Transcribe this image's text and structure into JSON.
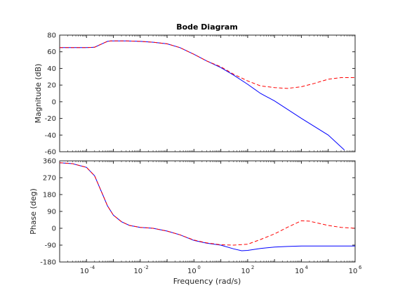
{
  "chart_data": {
    "type": "line",
    "title": "Bode Diagram",
    "xlabel": "Frequency  (rad/s)",
    "x_scale": "log",
    "xlim": [
      1e-05,
      1000000.0
    ],
    "x_ticks": [
      0.0001,
      0.01,
      1,
      100.0,
      10000.0,
      1000000.0
    ],
    "x_tick_labels": [
      [
        "10",
        "-4"
      ],
      [
        "10",
        "-2"
      ],
      [
        "10",
        "0"
      ],
      [
        "10",
        "2"
      ],
      [
        "10",
        "4"
      ],
      [
        "10",
        "6"
      ]
    ],
    "grid": false,
    "legend": "none",
    "colors": {
      "series_a": "#0000ff",
      "series_b": "#ff0000",
      "axes": "#262626"
    },
    "panels": [
      {
        "id": "magnitude",
        "ylabel": "Magnitude (dB)",
        "ylim": [
          -60,
          80
        ],
        "y_ticks": [
          -60,
          -40,
          -20,
          0,
          20,
          40,
          60,
          80
        ],
        "series": [
          {
            "style": "solid",
            "x": [
              1e-05,
              0.0001,
              0.0002,
              0.0004,
              0.0006,
              0.0008,
              0.001,
              0.003,
              0.01,
              0.03,
              0.1,
              0.3,
              1,
              3,
              10,
              30,
              100,
              300,
              1000,
              10000.0,
              100000.0,
              400000.0
            ],
            "y": [
              65,
              65,
              65.5,
              70,
              72.5,
              73,
              73,
              73,
              72.5,
              71.5,
              69.5,
              65,
              57,
              49,
              41,
              32,
              21,
              10,
              1,
              -20,
              -40,
              -58
            ]
          },
          {
            "style": "dashed",
            "x": [
              1e-05,
              0.0001,
              0.0002,
              0.0004,
              0.0006,
              0.0008,
              0.001,
              0.003,
              0.01,
              0.03,
              0.1,
              0.3,
              1,
              3,
              10,
              30,
              100,
              300,
              1000,
              3000,
              10000.0,
              30000.0,
              100000.0,
              300000.0,
              1000000.0
            ],
            "y": [
              65,
              65,
              65.5,
              70,
              72.5,
              73,
              73,
              73,
              72.5,
              71.5,
              69.5,
              65,
              57,
              49,
              42,
              33,
              25,
              19,
              17,
              16,
              18,
              22,
              27,
              29,
              29
            ]
          }
        ]
      },
      {
        "id": "phase",
        "ylabel": "Phase (deg)",
        "ylim": [
          -180,
          360
        ],
        "y_ticks": [
          -180,
          -90,
          0,
          90,
          180,
          270,
          360
        ],
        "series": [
          {
            "style": "solid",
            "x": [
              1e-05,
              3e-05,
              0.0001,
              0.0002,
              0.0004,
              0.0006,
              0.001,
              0.002,
              0.004,
              0.01,
              0.03,
              0.1,
              0.3,
              1,
              3,
              10,
              30,
              60,
              100,
              300,
              1000,
              3000,
              10000.0,
              100000.0,
              1000000.0
            ],
            "y": [
              350,
              345,
              325,
              280,
              180,
              120,
              70,
              35,
              15,
              5,
              0,
              -15,
              -35,
              -65,
              -80,
              -90,
              -110,
              -120,
              -118,
              -108,
              -100,
              -97,
              -95,
              -95,
              -95
            ]
          },
          {
            "style": "dashed",
            "x": [
              1e-05,
              3e-05,
              0.0001,
              0.0002,
              0.0004,
              0.0006,
              0.001,
              0.002,
              0.004,
              0.01,
              0.03,
              0.1,
              0.3,
              1,
              3,
              10,
              30,
              100,
              300,
              1000,
              3000,
              10000.0,
              20000.0,
              100000.0,
              300000.0,
              1000000.0
            ],
            "y": [
              350,
              345,
              325,
              280,
              180,
              120,
              70,
              35,
              15,
              5,
              0,
              -15,
              -35,
              -63,
              -78,
              -88,
              -90,
              -85,
              -60,
              -30,
              5,
              40,
              38,
              15,
              5,
              0
            ]
          }
        ]
      }
    ]
  }
}
